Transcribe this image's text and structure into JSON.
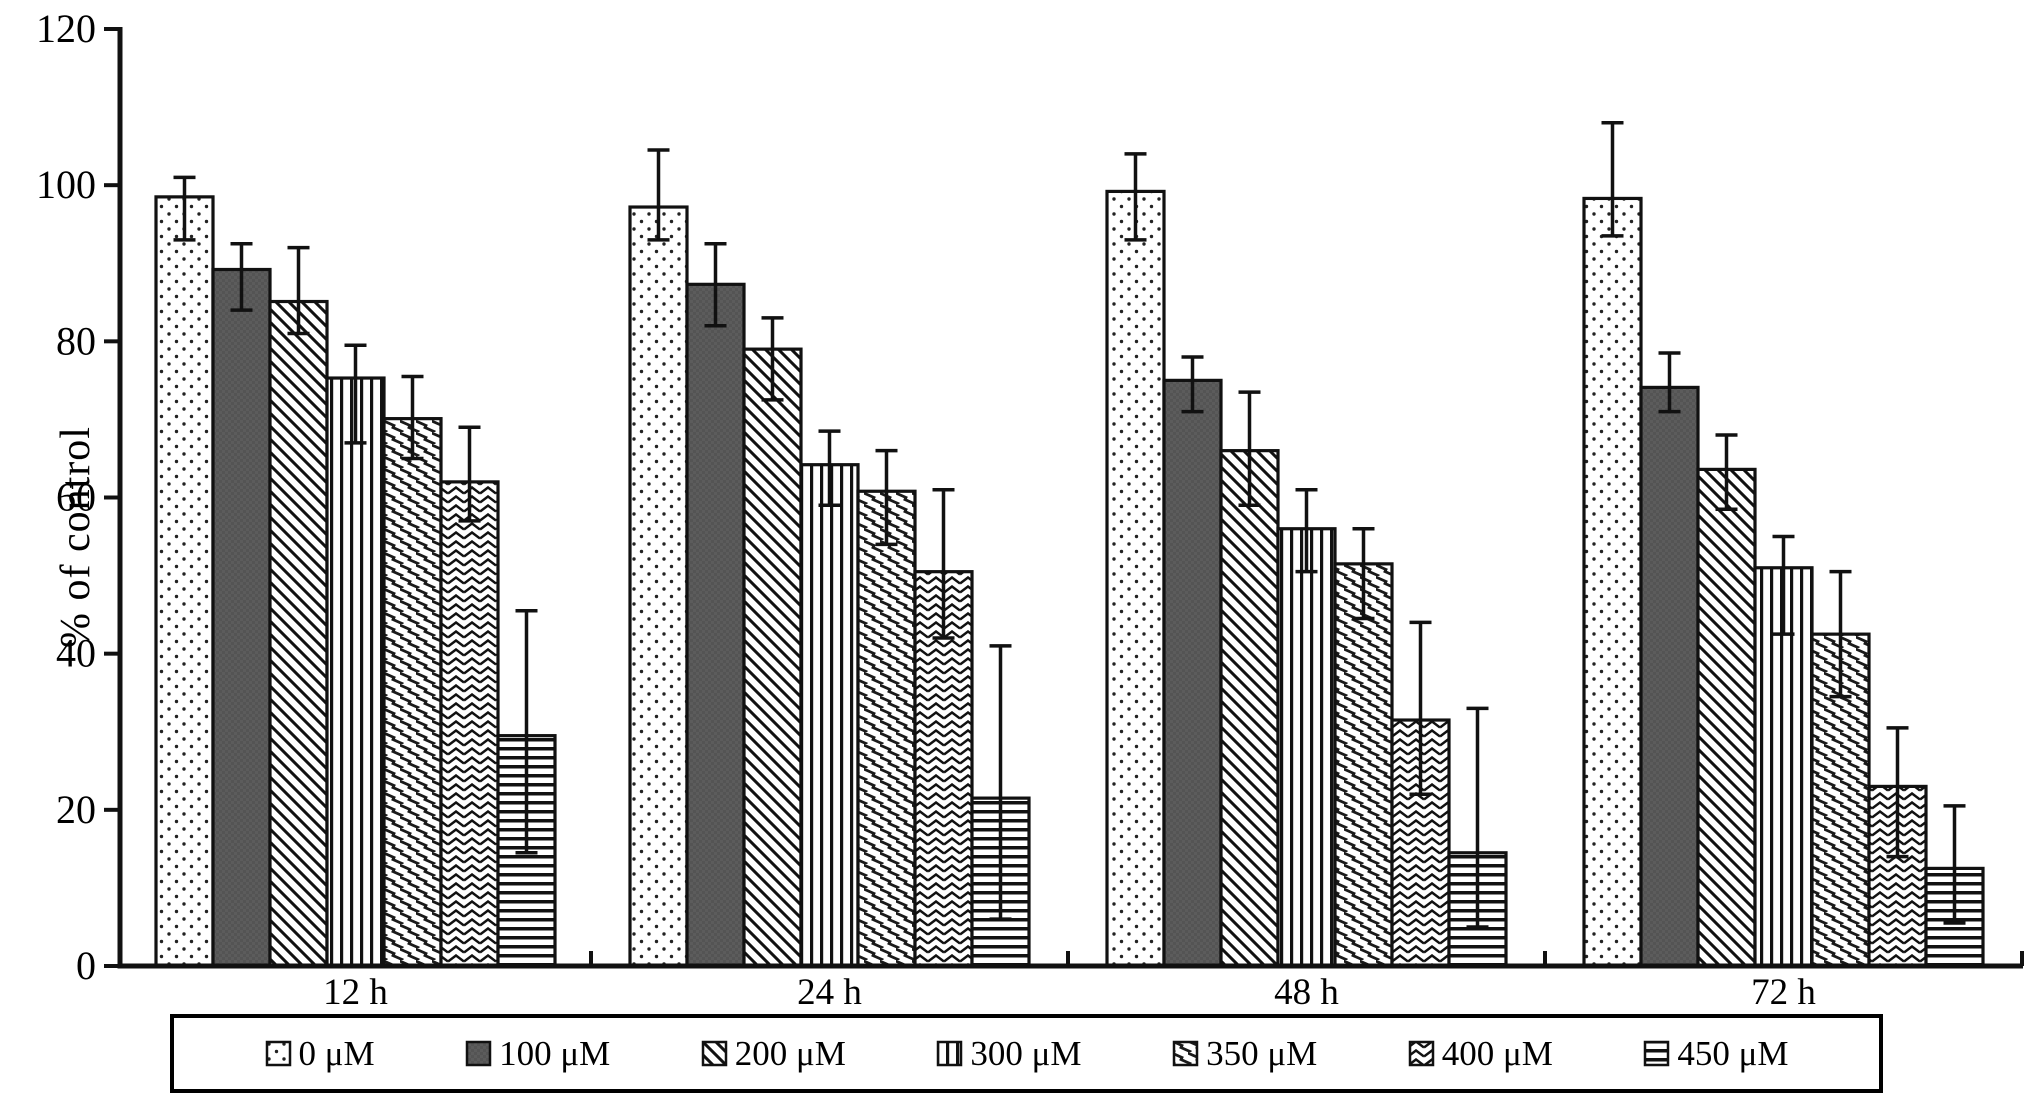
{
  "figure": {
    "background": "#ffffff",
    "ink_color": "#111111",
    "dark_bar_fill": "#545454"
  },
  "chart_data": {
    "type": "bar",
    "title": "",
    "xlabel": "",
    "ylabel": "% of control",
    "ylim": [
      0,
      120
    ],
    "yticks": [
      0,
      20,
      40,
      60,
      80,
      100,
      120
    ],
    "categories": [
      "12 h",
      "24 h",
      "48 h",
      "72 h"
    ],
    "grid": false,
    "legend_position": "bottom-box",
    "error_bars": true,
    "series": [
      {
        "name": "0 μM",
        "pattern": "dots",
        "values": [
          98.5,
          97.2,
          99.2,
          98.3
        ],
        "whisker_low": [
          93.0,
          93.0,
          93.0,
          93.5
        ],
        "whisker_high": [
          101.0,
          104.5,
          104.0,
          108.0
        ]
      },
      {
        "name": "100 μM",
        "pattern": "darksolid",
        "values": [
          89.2,
          87.3,
          75.0,
          74.1
        ],
        "whisker_low": [
          84.0,
          82.0,
          71.0,
          71.0
        ],
        "whisker_high": [
          92.5,
          92.5,
          78.0,
          78.5
        ]
      },
      {
        "name": "200 μM",
        "pattern": "diagonal",
        "values": [
          85.1,
          79.0,
          66.0,
          63.6
        ],
        "whisker_low": [
          81.0,
          72.5,
          59.0,
          58.5
        ],
        "whisker_high": [
          92.0,
          83.0,
          73.5,
          68.0
        ]
      },
      {
        "name": "300 μM",
        "pattern": "vlines",
        "values": [
          75.3,
          64.2,
          56.0,
          51.0
        ],
        "whisker_low": [
          67.0,
          59.0,
          50.5,
          42.5
        ],
        "whisker_high": [
          79.5,
          68.5,
          61.0,
          55.0
        ]
      },
      {
        "name": "350 μM",
        "pattern": "dashes",
        "values": [
          70.1,
          60.8,
          51.5,
          42.5
        ],
        "whisker_low": [
          65.0,
          54.0,
          44.5,
          34.5
        ],
        "whisker_high": [
          75.5,
          66.0,
          56.0,
          50.5
        ]
      },
      {
        "name": "400 μM",
        "pattern": "zigzag",
        "values": [
          62.0,
          50.5,
          31.5,
          23.0
        ],
        "whisker_low": [
          57.0,
          42.0,
          22.0,
          14.0
        ],
        "whisker_high": [
          69.0,
          61.0,
          44.0,
          30.5
        ]
      },
      {
        "name": "450 μM",
        "pattern": "hlines",
        "values": [
          29.5,
          21.5,
          14.5,
          12.5
        ],
        "whisker_low": [
          14.5,
          6.0,
          5.0,
          5.5
        ],
        "whisker_high": [
          45.5,
          41.0,
          33.0,
          20.5
        ]
      }
    ]
  }
}
